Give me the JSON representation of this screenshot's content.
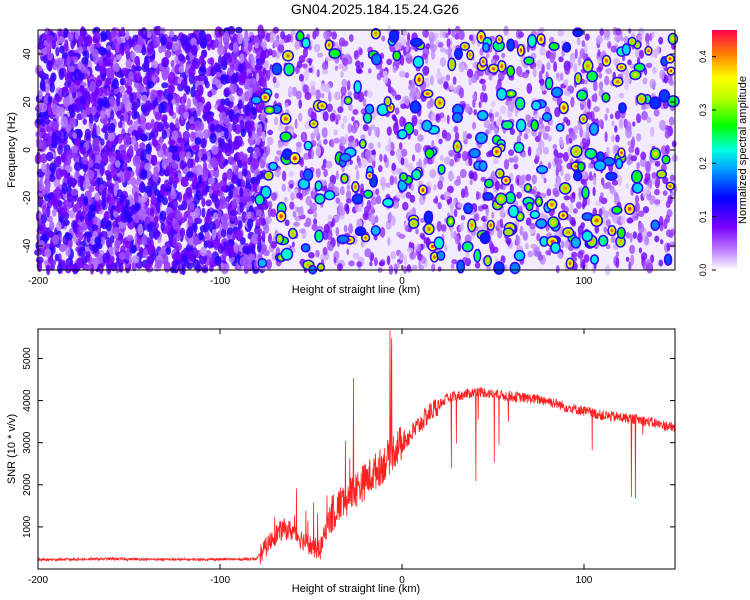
{
  "title": "GN04.2025.184.15.24.G26",
  "chart_data": [
    {
      "type": "heatmap",
      "xlabel": "Height of straight line (km)",
      "ylabel": "Frequency (Hz)",
      "xlim": [
        -200,
        150
      ],
      "ylim": [
        -50,
        50
      ],
      "xticks": [
        -200,
        -100,
        0,
        100
      ],
      "yticks": [
        -40,
        -20,
        0,
        20,
        40
      ],
      "colorbar": {
        "label": "Normalized spectral amplitude",
        "range": [
          0.0,
          0.45
        ],
        "ticks": [
          0.0,
          0.1,
          0.2,
          0.3,
          0.4
        ],
        "colors": [
          "#ffffff",
          "#7a00ff",
          "#0000ff",
          "#00e8ff",
          "#00ff00",
          "#ffff00",
          "#ff8000",
          "#ff0040"
        ]
      },
      "description_regions": [
        {
          "x_range": [
            -200,
            -80
          ],
          "level": "dense violet/purple noise"
        },
        {
          "x_range": [
            -80,
            150
          ],
          "level": "sparse blobs, peaks up to ~0.4"
        }
      ]
    },
    {
      "type": "line",
      "xlabel": "Height of straight line (km)",
      "ylabel": "SNR (10 * v/v)",
      "xlim": [
        -200,
        150
      ],
      "ylim": [
        0,
        5700
      ],
      "xticks": [
        -200,
        -100,
        0,
        100
      ],
      "yticks": [
        1000,
        2000,
        3000,
        4000,
        5000
      ],
      "color": "#ff2020",
      "series": [
        {
          "x": [
            -200,
            -180,
            -160,
            -140,
            -120,
            -100,
            -90,
            -80,
            -75,
            -70,
            -65,
            -60,
            -55,
            -50,
            -45,
            -40,
            -35,
            -30,
            -25,
            -20,
            -15,
            -10,
            -5,
            0,
            5,
            10,
            15,
            20,
            25,
            30,
            35,
            40,
            45,
            50,
            60,
            70,
            80,
            90,
            100,
            110,
            120,
            130,
            140,
            150
          ],
          "values": [
            220,
            230,
            240,
            230,
            225,
            230,
            230,
            240,
            500,
            800,
            950,
            900,
            700,
            550,
            450,
            1200,
            1500,
            1700,
            1900,
            2100,
            2300,
            2500,
            2800,
            3000,
            3200,
            3450,
            3700,
            3900,
            4050,
            4100,
            4150,
            4200,
            4200,
            4150,
            4100,
            4050,
            4000,
            3850,
            3750,
            3650,
            3600,
            3550,
            3450,
            3350
          ]
        }
      ]
    }
  ]
}
